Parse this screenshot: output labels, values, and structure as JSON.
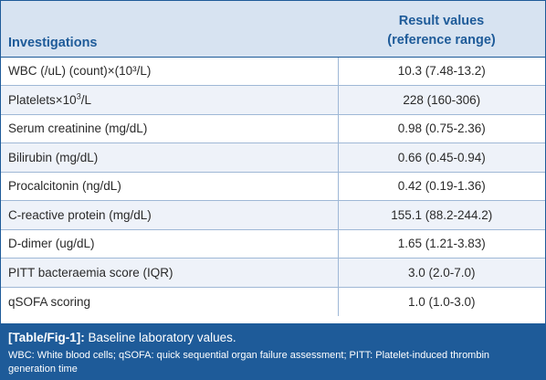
{
  "table": {
    "header": {
      "parameter": "Investigations",
      "value_line1": "Result values",
      "value_line2": "(reference range)"
    },
    "rows": [
      {
        "parameter": "WBC (/uL) (count)×(10³/L)",
        "value": "10.3 (7.48-13.2)"
      },
      {
        "parameter_prefix": "Platelets×10",
        "parameter_sup": "3",
        "parameter_suffix": "/L",
        "value": "228 (160-306)"
      },
      {
        "parameter": "Serum creatinine (mg/dL)",
        "value": "0.98 (0.75-2.36)"
      },
      {
        "parameter": "Bilirubin (mg/dL)",
        "value": "0.66 (0.45-0.94)"
      },
      {
        "parameter": "Procalcitonin (ng/dL)",
        "value": "0.42 (0.19-1.36)"
      },
      {
        "parameter": "C-reactive protein (mg/dL)",
        "value": "155.1 (88.2-244.2)"
      },
      {
        "parameter": "D-dimer (ug/dL)",
        "value": "1.65 (1.21-3.83)"
      },
      {
        "parameter": "PITT bacteraemia score (IQR)",
        "value": "3.0 (2.0-7.0)"
      },
      {
        "parameter": "qSOFA scoring",
        "value": "1.0 (1.0-3.0)"
      }
    ]
  },
  "caption": {
    "tag": "[Table/Fig-1]:",
    "title": "Baseline laboratory values.",
    "note": "WBC: White blood cells; qSOFA: quick sequential organ failure assessment; PITT: Platelet-induced thrombin generation time"
  },
  "colors": {
    "header_text": "#1e5b99",
    "header_bg": "#d7e3f1",
    "caption_bg": "#1e5b99"
  }
}
